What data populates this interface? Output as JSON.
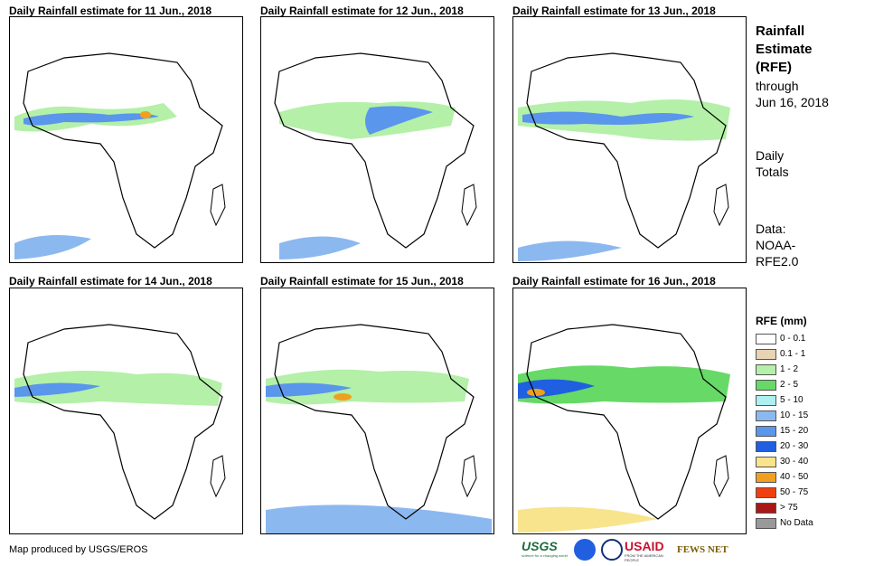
{
  "panels": [
    {
      "title": "Daily Rainfall estimate for 11 Jun., 2018"
    },
    {
      "title": "Daily Rainfall estimate for 12 Jun., 2018"
    },
    {
      "title": "Daily Rainfall estimate for 13 Jun., 2018"
    },
    {
      "title": "Daily Rainfall estimate for 14 Jun., 2018"
    },
    {
      "title": "Daily Rainfall estimate for 15 Jun., 2018"
    },
    {
      "title": "Daily Rainfall estimate for 16 Jun., 2018"
    }
  ],
  "sidebar": {
    "title_line1": "Rainfall",
    "title_line2": "Estimate",
    "title_line3": "(RFE)",
    "through": "through",
    "date": "Jun 16, 2018",
    "daily": "Daily",
    "totals": "Totals",
    "data_label": "Data:",
    "data_source1": "NOAA-",
    "data_source2": "RFE2.0"
  },
  "legend": {
    "title": "RFE (mm)",
    "items": [
      {
        "label": "0 - 0.1",
        "color": "#ffffff"
      },
      {
        "label": "0.1 - 1",
        "color": "#e8d3b3"
      },
      {
        "label": "1 - 2",
        "color": "#b4f0a8"
      },
      {
        "label": "2 - 5",
        "color": "#66d966"
      },
      {
        "label": "5 - 10",
        "color": "#aef0f0"
      },
      {
        "label": "10 - 15",
        "color": "#8cb8f0"
      },
      {
        "label": "15 - 20",
        "color": "#5a96ec"
      },
      {
        "label": "20 - 30",
        "color": "#1f5fe0"
      },
      {
        "label": "30 - 40",
        "color": "#f8e48c"
      },
      {
        "label": "40 - 50",
        "color": "#f0a020"
      },
      {
        "label": "50 - 75",
        "color": "#f04010"
      },
      {
        "label": "> 75",
        "color": "#a81818"
      },
      {
        "label": "No Data",
        "color": "#999999"
      }
    ]
  },
  "credit": "Map produced by USGS/EROS",
  "logos": {
    "usgs": "USGS",
    "usgs_tagline": "science for a changing world",
    "usaid": "USAID",
    "usaid_tagline": "FROM THE AMERICAN PEOPLE",
    "fewsnet": "FEWS NET"
  }
}
